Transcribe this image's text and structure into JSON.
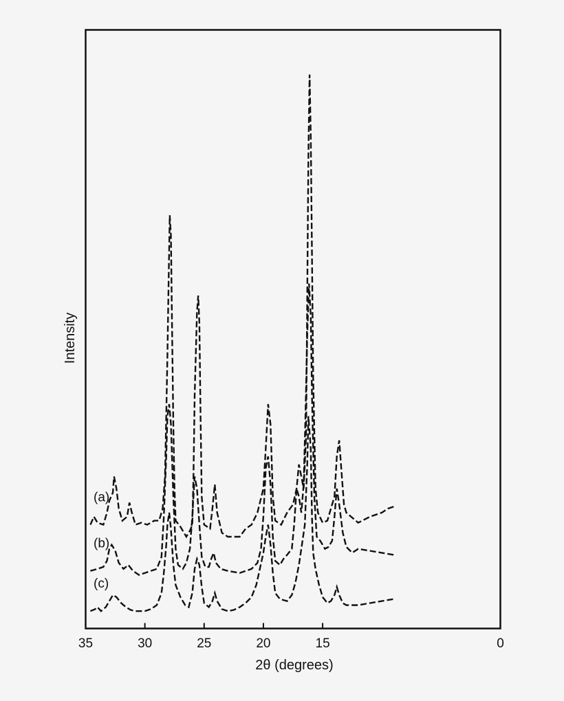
{
  "chart_data": {
    "type": "line",
    "xlabel": "2θ (degrees)",
    "ylabel": "Intensity",
    "xlim": [
      35,
      0
    ],
    "x_reversed": true,
    "x_ticks": [
      35,
      30,
      25,
      20,
      15,
      0
    ],
    "x_tick_labels": [
      "35",
      "30",
      "25",
      "20",
      "15",
      "0"
    ],
    "y_ticks_shown": false,
    "grid": false,
    "line_style": "dashed",
    "line_color": "#111111",
    "series": [
      {
        "name": "(a)",
        "baseline": 2.3,
        "points": [
          [
            34.6,
            2.3
          ],
          [
            34.3,
            2.5
          ],
          [
            34.0,
            2.35
          ],
          [
            33.5,
            2.3
          ],
          [
            33.2,
            2.6
          ],
          [
            33.0,
            2.9
          ],
          [
            32.7,
            3.1
          ],
          [
            32.6,
            3.5
          ],
          [
            32.4,
            3.2
          ],
          [
            32.2,
            2.7
          ],
          [
            31.9,
            2.4
          ],
          [
            31.5,
            2.5
          ],
          [
            31.3,
            2.85
          ],
          [
            31.1,
            2.6
          ],
          [
            30.8,
            2.3
          ],
          [
            30.3,
            2.35
          ],
          [
            29.8,
            2.3
          ],
          [
            29.2,
            2.4
          ],
          [
            28.8,
            2.4
          ],
          [
            28.5,
            2.7
          ],
          [
            28.3,
            3.5
          ],
          [
            28.2,
            5.0
          ],
          [
            28.1,
            6.5
          ],
          [
            28.0,
            8.3
          ],
          [
            27.9,
            10.0
          ],
          [
            27.8,
            9.5
          ],
          [
            27.7,
            7.0
          ],
          [
            27.6,
            4.8
          ],
          [
            27.5,
            3.2
          ],
          [
            27.4,
            2.4
          ],
          [
            27.0,
            2.25
          ],
          [
            26.5,
            2.0
          ],
          [
            26.2,
            2.15
          ],
          [
            26.0,
            2.3
          ],
          [
            25.9,
            3.5
          ],
          [
            25.8,
            5.5
          ],
          [
            25.6,
            7.6
          ],
          [
            25.5,
            8.0
          ],
          [
            25.4,
            7.3
          ],
          [
            25.3,
            5.0
          ],
          [
            25.2,
            3.0
          ],
          [
            25.0,
            2.3
          ],
          [
            24.5,
            2.2
          ],
          [
            24.3,
            2.7
          ],
          [
            24.1,
            3.3
          ],
          [
            23.9,
            2.6
          ],
          [
            23.5,
            2.1
          ],
          [
            23.0,
            2.0
          ],
          [
            22.0,
            2.0
          ],
          [
            21.5,
            2.2
          ],
          [
            21.0,
            2.3
          ],
          [
            20.5,
            2.6
          ],
          [
            20.0,
            3.2
          ],
          [
            19.8,
            4.2
          ],
          [
            19.6,
            5.3
          ],
          [
            19.4,
            4.8
          ],
          [
            19.2,
            3.0
          ],
          [
            19.0,
            2.4
          ],
          [
            18.5,
            2.3
          ],
          [
            18.0,
            2.6
          ],
          [
            17.5,
            2.8
          ],
          [
            17.2,
            3.2
          ],
          [
            17.0,
            3.8
          ],
          [
            16.8,
            3.5
          ],
          [
            16.6,
            3.2
          ],
          [
            16.4,
            4.5
          ],
          [
            16.3,
            8.0
          ],
          [
            16.2,
            11.5
          ],
          [
            16.1,
            13.5
          ],
          [
            16.0,
            12.0
          ],
          [
            15.9,
            9.0
          ],
          [
            15.8,
            6.0
          ],
          [
            15.6,
            3.2
          ],
          [
            15.4,
            2.6
          ],
          [
            15.0,
            2.35
          ],
          [
            14.6,
            2.4
          ],
          [
            14.3,
            2.7
          ],
          [
            14.0,
            3.0
          ],
          [
            13.8,
            4.0
          ],
          [
            13.6,
            4.4
          ],
          [
            13.4,
            3.6
          ],
          [
            13.2,
            2.8
          ],
          [
            13.0,
            2.6
          ],
          [
            12.0,
            2.35
          ],
          [
            11.0,
            2.5
          ],
          [
            10.0,
            2.6
          ],
          [
            9.5,
            2.7
          ],
          [
            9.0,
            2.75
          ]
        ]
      },
      {
        "name": "(b)",
        "baseline": 1.15,
        "points": [
          [
            34.6,
            1.15
          ],
          [
            34.0,
            1.2
          ],
          [
            33.5,
            1.25
          ],
          [
            33.2,
            1.4
          ],
          [
            33.0,
            1.7
          ],
          [
            32.8,
            1.8
          ],
          [
            32.5,
            1.65
          ],
          [
            32.2,
            1.35
          ],
          [
            31.8,
            1.2
          ],
          [
            31.4,
            1.3
          ],
          [
            31.0,
            1.15
          ],
          [
            30.5,
            1.05
          ],
          [
            30.0,
            1.1
          ],
          [
            29.5,
            1.15
          ],
          [
            29.0,
            1.2
          ],
          [
            28.6,
            1.5
          ],
          [
            28.4,
            2.5
          ],
          [
            28.2,
            4.0
          ],
          [
            28.1,
            5.0
          ],
          [
            27.95,
            5.3
          ],
          [
            27.8,
            4.8
          ],
          [
            27.6,
            3.0
          ],
          [
            27.4,
            1.7
          ],
          [
            27.2,
            1.3
          ],
          [
            26.8,
            1.2
          ],
          [
            26.5,
            1.35
          ],
          [
            26.2,
            1.7
          ],
          [
            26.0,
            2.5
          ],
          [
            25.8,
            3.5
          ],
          [
            25.6,
            3.2
          ],
          [
            25.4,
            2.3
          ],
          [
            25.2,
            1.5
          ],
          [
            24.9,
            1.25
          ],
          [
            24.6,
            1.25
          ],
          [
            24.4,
            1.45
          ],
          [
            24.2,
            1.6
          ],
          [
            24.0,
            1.35
          ],
          [
            23.6,
            1.2
          ],
          [
            23.0,
            1.15
          ],
          [
            22.0,
            1.1
          ],
          [
            21.0,
            1.2
          ],
          [
            20.5,
            1.35
          ],
          [
            20.2,
            1.7
          ],
          [
            20.0,
            2.5
          ],
          [
            19.8,
            3.7
          ],
          [
            19.6,
            4.0
          ],
          [
            19.4,
            3.3
          ],
          [
            19.2,
            2.0
          ],
          [
            19.0,
            1.4
          ],
          [
            18.6,
            1.3
          ],
          [
            18.3,
            1.45
          ],
          [
            18.0,
            1.55
          ],
          [
            17.6,
            1.7
          ],
          [
            17.4,
            2.3
          ],
          [
            17.2,
            3.2
          ],
          [
            17.0,
            3.0
          ],
          [
            16.8,
            2.6
          ],
          [
            16.6,
            3.3
          ],
          [
            16.45,
            5.0
          ],
          [
            16.3,
            7.0
          ],
          [
            16.15,
            8.3
          ],
          [
            16.0,
            7.5
          ],
          [
            15.9,
            5.5
          ],
          [
            15.7,
            3.0
          ],
          [
            15.5,
            2.0
          ],
          [
            15.2,
            1.9
          ],
          [
            14.8,
            1.7
          ],
          [
            14.5,
            1.75
          ],
          [
            14.2,
            1.9
          ],
          [
            14.0,
            2.5
          ],
          [
            13.8,
            3.2
          ],
          [
            13.6,
            2.8
          ],
          [
            13.3,
            2.1
          ],
          [
            13.0,
            1.75
          ],
          [
            12.5,
            1.6
          ],
          [
            12.0,
            1.7
          ],
          [
            11.0,
            1.65
          ],
          [
            10.0,
            1.6
          ],
          [
            9.0,
            1.55
          ]
        ]
      },
      {
        "name": "(c)",
        "baseline": 0.15,
        "points": [
          [
            34.6,
            0.15
          ],
          [
            34.2,
            0.2
          ],
          [
            34.0,
            0.25
          ],
          [
            33.7,
            0.15
          ],
          [
            33.3,
            0.25
          ],
          [
            33.0,
            0.4
          ],
          [
            32.7,
            0.55
          ],
          [
            32.4,
            0.5
          ],
          [
            32.0,
            0.35
          ],
          [
            31.6,
            0.25
          ],
          [
            31.2,
            0.18
          ],
          [
            30.8,
            0.15
          ],
          [
            30.0,
            0.15
          ],
          [
            29.5,
            0.2
          ],
          [
            29.0,
            0.3
          ],
          [
            28.6,
            0.6
          ],
          [
            28.4,
            1.1
          ],
          [
            28.2,
            1.8
          ],
          [
            28.1,
            2.3
          ],
          [
            27.95,
            2.6
          ],
          [
            27.8,
            2.2
          ],
          [
            27.6,
            1.3
          ],
          [
            27.4,
            0.8
          ],
          [
            27.0,
            0.5
          ],
          [
            26.6,
            0.3
          ],
          [
            26.3,
            0.25
          ],
          [
            26.0,
            0.6
          ],
          [
            25.8,
            1.2
          ],
          [
            25.6,
            1.45
          ],
          [
            25.4,
            1.3
          ],
          [
            25.2,
            0.75
          ],
          [
            25.0,
            0.35
          ],
          [
            24.6,
            0.25
          ],
          [
            24.3,
            0.4
          ],
          [
            24.1,
            0.6
          ],
          [
            23.9,
            0.4
          ],
          [
            23.5,
            0.2
          ],
          [
            23.0,
            0.15
          ],
          [
            22.5,
            0.18
          ],
          [
            22.0,
            0.25
          ],
          [
            21.5,
            0.35
          ],
          [
            21.0,
            0.5
          ],
          [
            20.6,
            0.8
          ],
          [
            20.3,
            1.2
          ],
          [
            20.0,
            1.6
          ],
          [
            19.8,
            2.0
          ],
          [
            19.6,
            2.3
          ],
          [
            19.4,
            1.8
          ],
          [
            19.2,
            1.1
          ],
          [
            19.0,
            0.6
          ],
          [
            18.6,
            0.45
          ],
          [
            18.0,
            0.4
          ],
          [
            17.6,
            0.55
          ],
          [
            17.3,
            0.85
          ],
          [
            17.0,
            1.3
          ],
          [
            16.8,
            1.7
          ],
          [
            16.5,
            2.3
          ],
          [
            16.3,
            3.8
          ],
          [
            16.2,
            5.0
          ],
          [
            16.0,
            4.2
          ],
          [
            15.9,
            2.5
          ],
          [
            15.8,
            1.6
          ],
          [
            15.6,
            1.2
          ],
          [
            15.3,
            0.8
          ],
          [
            15.0,
            0.5
          ],
          [
            14.6,
            0.35
          ],
          [
            14.3,
            0.4
          ],
          [
            14.0,
            0.55
          ],
          [
            13.8,
            0.75
          ],
          [
            13.6,
            0.55
          ],
          [
            13.3,
            0.35
          ],
          [
            13.0,
            0.3
          ],
          [
            12.0,
            0.3
          ],
          [
            11.0,
            0.35
          ],
          [
            10.0,
            0.4
          ],
          [
            9.0,
            0.45
          ]
        ]
      }
    ]
  }
}
